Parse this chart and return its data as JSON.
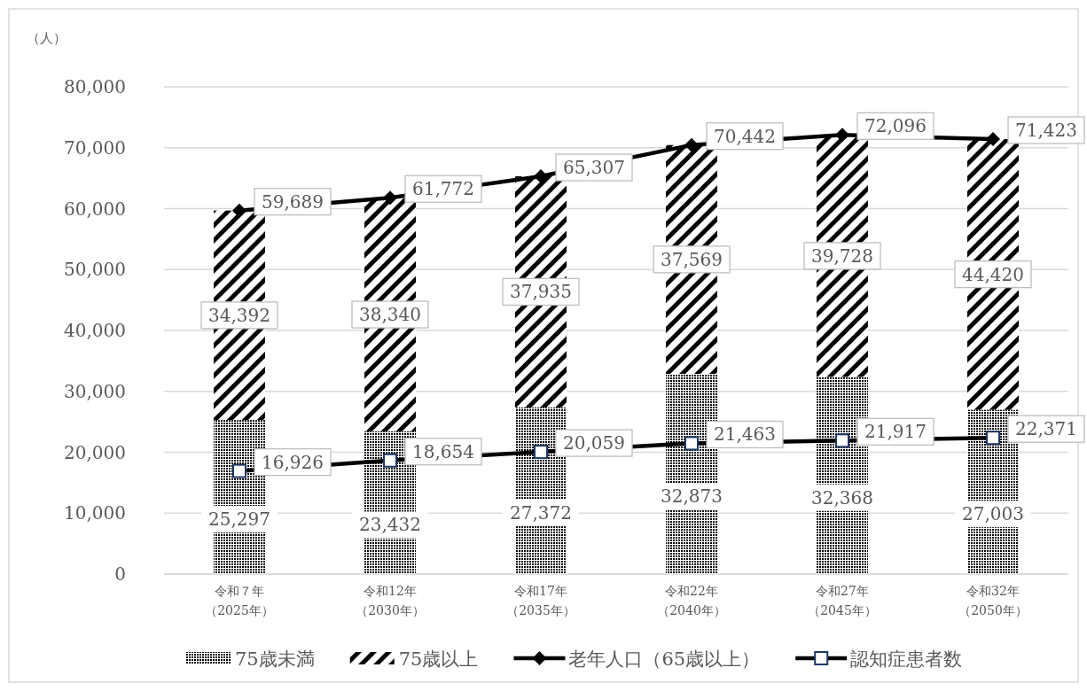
{
  "chart_data": {
    "type": "bar",
    "stacked": true,
    "ylabel": "（人）",
    "categories": [
      "令和７年（2025年）",
      "令和12年（2030年）",
      "令和17年（2035年）",
      "令和22年（2040年）",
      "令和27年（2045年）",
      "令和32年（2050年）"
    ],
    "series": [
      {
        "name": "75歳未満",
        "color": "#000000",
        "values": [
          25297,
          23432,
          27372,
          32873,
          32368,
          27003
        ],
        "value_labels": [
          "25,297",
          "23,432",
          "27,372",
          "32,873",
          "32,368",
          "27,003"
        ]
      },
      {
        "name": "75歳以上",
        "color": "#000000",
        "values": [
          34392,
          38340,
          37935,
          37569,
          39728,
          44420
        ],
        "value_labels": [
          "34,392",
          "38,340",
          "37,935",
          "37,569",
          "39,728",
          "44,420"
        ]
      },
      {
        "name": "老年人口（65歳以上）",
        "type": "line",
        "color": "#000000",
        "marker": "diamond",
        "values": [
          59689,
          61772,
          65307,
          70442,
          72096,
          71423
        ],
        "value_labels": [
          "59,689",
          "61,772",
          "65,307",
          "70,442",
          "72,096",
          "71,423"
        ]
      },
      {
        "name": "認知症患者数",
        "type": "line",
        "color": "#000000",
        "marker": "square",
        "values": [
          16926,
          18654,
          20059,
          21463,
          21917,
          22371
        ],
        "value_labels": [
          "16,926",
          "18,654",
          "20,059",
          "21,463",
          "21,917",
          "22,371"
        ]
      }
    ],
    "ylim": [
      0,
      80000
    ],
    "yticks": [
      {
        "value": 0,
        "label": "0"
      },
      {
        "value": 10000,
        "label": "10,000"
      },
      {
        "value": 20000,
        "label": "20,000"
      },
      {
        "value": 30000,
        "label": "30,000"
      },
      {
        "value": 40000,
        "label": "40,000"
      },
      {
        "value": 50000,
        "label": "50,000"
      },
      {
        "value": 60000,
        "label": "60,000"
      },
      {
        "value": 70000,
        "label": "70,000"
      },
      {
        "value": 80000,
        "label": "80,000"
      }
    ],
    "grid": "y",
    "legend": "bottom"
  }
}
